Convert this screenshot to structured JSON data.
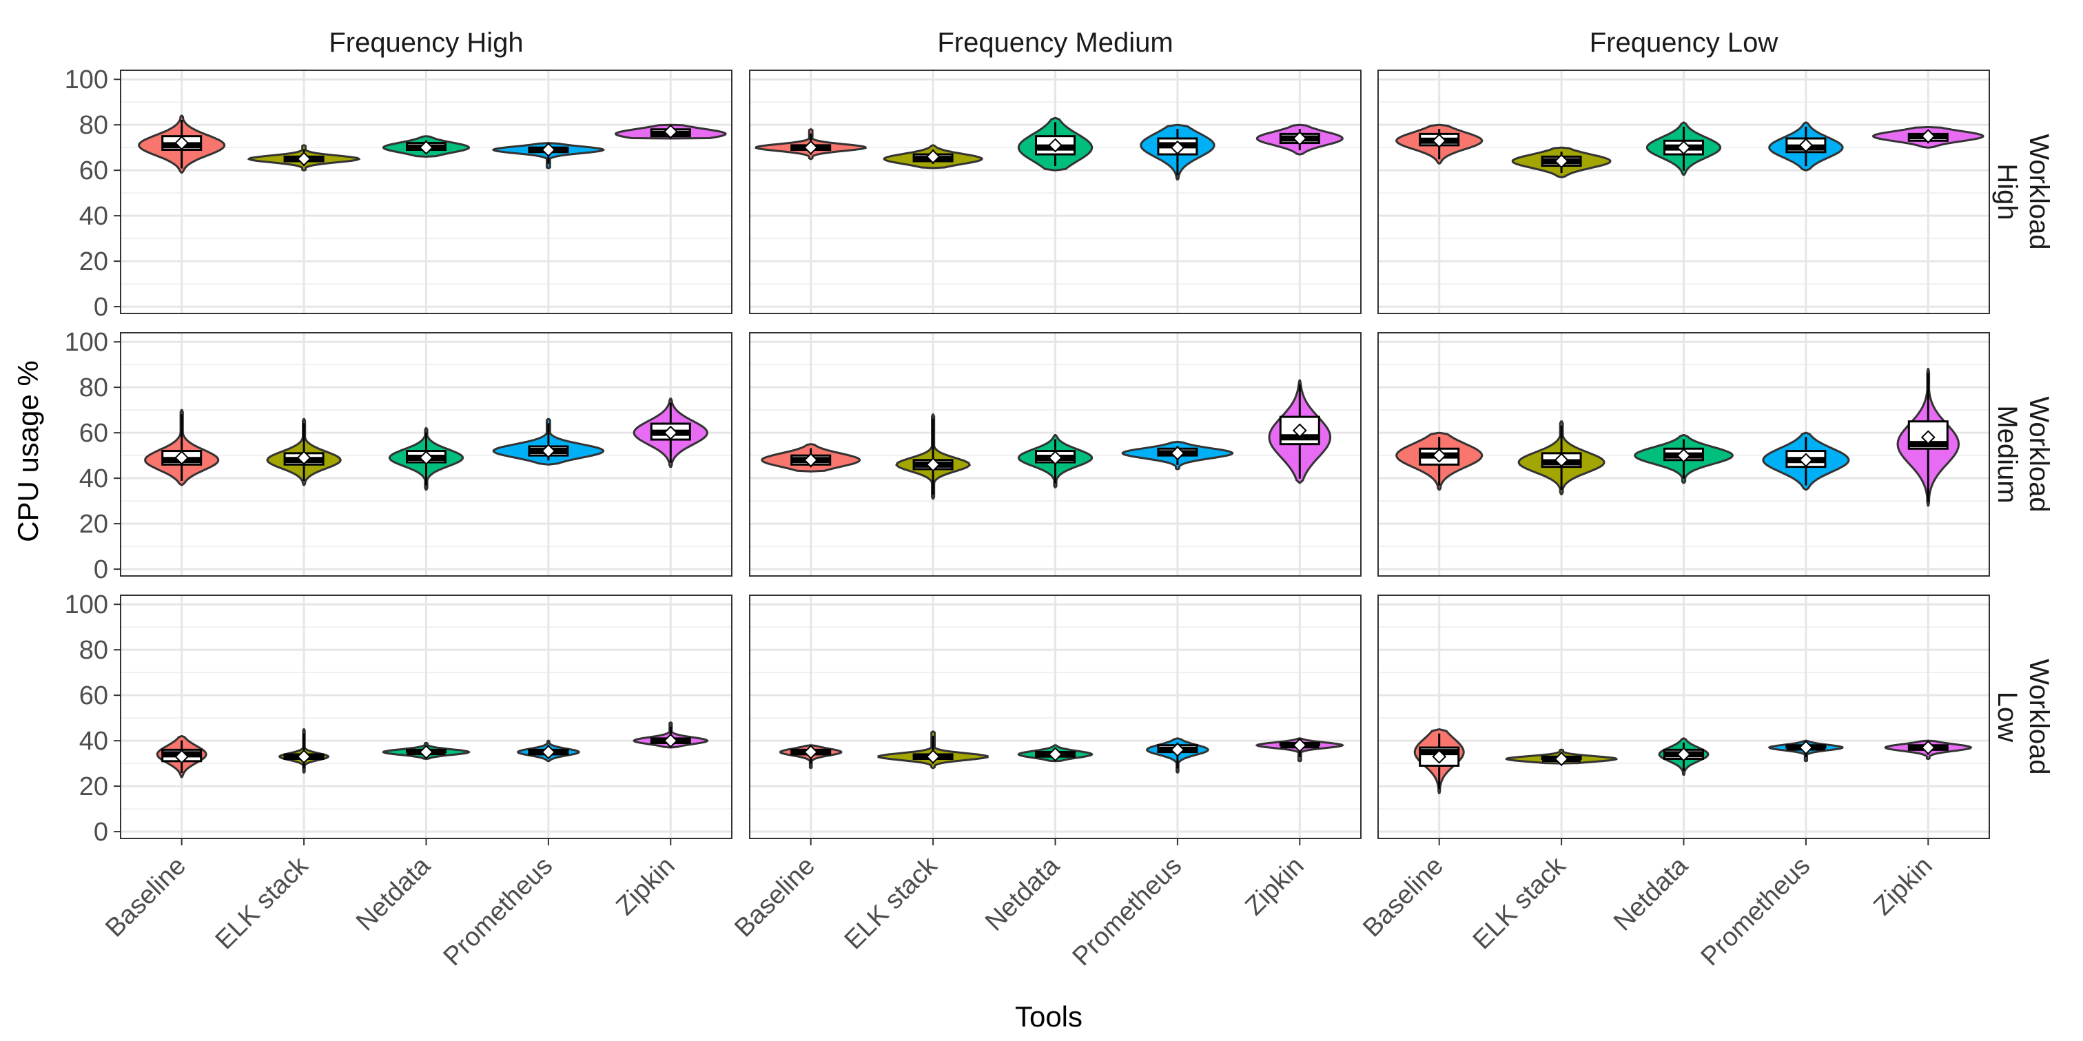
{
  "chart_data": {
    "type": "violin",
    "facet_columns": [
      "Frequency High",
      "Frequency Medium",
      "Frequency Low"
    ],
    "facet_rows": [
      "Workload High",
      "Workload Medium",
      "Workload Low"
    ],
    "facet_row_lines": [
      [
        "Workload",
        "High"
      ],
      [
        "Workload",
        "Medium"
      ],
      [
        "Workload",
        "Low"
      ]
    ],
    "categories": [
      "Baseline",
      "ELK stack",
      "Netdata",
      "Prometheus",
      "Zipkin"
    ],
    "colors": [
      "#F8766D",
      "#A3A500",
      "#00BF7D",
      "#00B0F6",
      "#E76BF3"
    ],
    "xlabel": "Tools",
    "ylabel": "CPU usage %",
    "ylim": [
      -3,
      104
    ],
    "yticks": [
      0,
      20,
      40,
      60,
      80,
      100
    ],
    "grid": true,
    "panels": [
      [
        [
          {
            "q1": 69,
            "median": 71,
            "q3": 75,
            "mean": 72,
            "min": 59,
            "max": 84,
            "w": 0.35
          },
          {
            "q1": 64,
            "median": 65,
            "q3": 66,
            "mean": 65,
            "min": 60,
            "max": 71,
            "w": 0.45
          },
          {
            "q1": 69,
            "median": 70,
            "q3": 72,
            "mean": 70,
            "min": 66,
            "max": 75,
            "w": 0.35
          },
          {
            "q1": 68,
            "median": 69,
            "q3": 70,
            "mean": 69,
            "min": 61,
            "max": 72,
            "w": 0.45
          },
          {
            "q1": 75,
            "median": 76,
            "q3": 78,
            "mean": 77,
            "min": 74,
            "max": 80,
            "w": 0.45
          }
        ],
        [
          {
            "q1": 69,
            "median": 70,
            "q3": 71,
            "mean": 70,
            "min": 65,
            "max": 78,
            "w": 0.45
          },
          {
            "q1": 64,
            "median": 65,
            "q3": 67,
            "mean": 66,
            "min": 61,
            "max": 71,
            "w": 0.4
          },
          {
            "q1": 67,
            "median": 70,
            "q3": 75,
            "mean": 71,
            "min": 60,
            "max": 83,
            "w": 0.3
          },
          {
            "q1": 67,
            "median": 71,
            "q3": 74,
            "mean": 70,
            "min": 56,
            "max": 80,
            "w": 0.3
          },
          {
            "q1": 72,
            "median": 74,
            "q3": 76,
            "mean": 74,
            "min": 67,
            "max": 80,
            "w": 0.35
          }
        ],
        [
          {
            "q1": 71,
            "median": 73,
            "q3": 76,
            "mean": 73,
            "min": 63,
            "max": 80,
            "w": 0.35
          },
          {
            "q1": 62,
            "median": 64,
            "q3": 66,
            "mean": 64,
            "min": 57,
            "max": 70,
            "w": 0.4
          },
          {
            "q1": 67,
            "median": 70,
            "q3": 73,
            "mean": 70,
            "min": 58,
            "max": 81,
            "w": 0.3
          },
          {
            "q1": 68,
            "median": 70,
            "q3": 74,
            "mean": 71,
            "min": 60,
            "max": 81,
            "w": 0.3
          },
          {
            "q1": 73,
            "median": 75,
            "q3": 76,
            "mean": 75,
            "min": 70,
            "max": 79,
            "w": 0.45
          }
        ]
      ],
      [
        [
          {
            "q1": 46,
            "median": 48,
            "q3": 52,
            "mean": 49,
            "min": 37,
            "max": 70,
            "w": 0.3
          },
          {
            "q1": 46,
            "median": 48,
            "q3": 51,
            "mean": 49,
            "min": 37,
            "max": 66,
            "w": 0.3
          },
          {
            "q1": 47,
            "median": 49,
            "q3": 52,
            "mean": 49,
            "min": 35,
            "max": 62,
            "w": 0.3
          },
          {
            "q1": 50,
            "median": 52,
            "q3": 54,
            "mean": 52,
            "min": 46,
            "max": 66,
            "w": 0.45
          },
          {
            "q1": 57,
            "median": 60,
            "q3": 64,
            "mean": 60,
            "min": 45,
            "max": 75,
            "w": 0.3
          }
        ],
        [
          {
            "q1": 46,
            "median": 48,
            "q3": 50,
            "mean": 48,
            "min": 43,
            "max": 55,
            "w": 0.4
          },
          {
            "q1": 44,
            "median": 46,
            "q3": 48,
            "mean": 46,
            "min": 31,
            "max": 68,
            "w": 0.3
          },
          {
            "q1": 47,
            "median": 49,
            "q3": 52,
            "mean": 49,
            "min": 36,
            "max": 59,
            "w": 0.3
          },
          {
            "q1": 50,
            "median": 51,
            "q3": 53,
            "mean": 51,
            "min": 44,
            "max": 56,
            "w": 0.45
          },
          {
            "q1": 55,
            "median": 58,
            "q3": 67,
            "mean": 61,
            "min": 38,
            "max": 83,
            "w": 0.25
          }
        ],
        [
          {
            "q1": 46,
            "median": 50,
            "q3": 53,
            "mean": 50,
            "min": 35,
            "max": 60,
            "w": 0.35
          },
          {
            "q1": 45,
            "median": 47,
            "q3": 51,
            "mean": 48,
            "min": 33,
            "max": 65,
            "w": 0.35
          },
          {
            "q1": 48,
            "median": 50,
            "q3": 53,
            "mean": 50,
            "min": 38,
            "max": 59,
            "w": 0.4
          },
          {
            "q1": 45,
            "median": 48,
            "q3": 52,
            "mean": 48,
            "min": 35,
            "max": 60,
            "w": 0.35
          },
          {
            "q1": 53,
            "median": 55,
            "q3": 65,
            "mean": 58,
            "min": 28,
            "max": 88,
            "w": 0.25
          }
        ]
      ],
      [
        [
          {
            "q1": 31,
            "median": 34,
            "q3": 36,
            "mean": 33,
            "min": 24,
            "max": 42,
            "w": 0.2
          },
          {
            "q1": 32,
            "median": 33,
            "q3": 34,
            "mean": 33,
            "min": 26,
            "max": 45,
            "w": 0.2
          },
          {
            "q1": 35,
            "median": 35,
            "q3": 36,
            "mean": 35,
            "min": 32,
            "max": 39,
            "w": 0.35
          },
          {
            "q1": 34,
            "median": 35,
            "q3": 36,
            "mean": 35,
            "min": 31,
            "max": 40,
            "w": 0.25
          },
          {
            "q1": 39,
            "median": 40,
            "q3": 41,
            "mean": 40,
            "min": 37,
            "max": 48,
            "w": 0.3
          }
        ],
        [
          {
            "q1": 34,
            "median": 35,
            "q3": 36,
            "mean": 35,
            "min": 28,
            "max": 38,
            "w": 0.25
          },
          {
            "q1": 32,
            "median": 33,
            "q3": 34,
            "mean": 33,
            "min": 28,
            "max": 44,
            "w": 0.45
          },
          {
            "q1": 33,
            "median": 34,
            "q3": 35,
            "mean": 34,
            "min": 31,
            "max": 38,
            "w": 0.3
          },
          {
            "q1": 35,
            "median": 36,
            "q3": 38,
            "mean": 36,
            "min": 26,
            "max": 41,
            "w": 0.25
          },
          {
            "q1": 38,
            "median": 38,
            "q3": 39,
            "mean": 38,
            "min": 31,
            "max": 41,
            "w": 0.35
          }
        ],
        [
          {
            "q1": 29,
            "median": 35,
            "q3": 37,
            "mean": 33,
            "min": 17,
            "max": 45,
            "w": 0.2
          },
          {
            "q1": 32,
            "median": 32,
            "q3": 33,
            "mean": 32,
            "min": 30,
            "max": 36,
            "w": 0.45
          },
          {
            "q1": 32,
            "median": 34,
            "q3": 36,
            "mean": 34,
            "min": 25,
            "max": 41,
            "w": 0.2
          },
          {
            "q1": 37,
            "median": 37,
            "q3": 38,
            "mean": 37,
            "min": 31,
            "max": 40,
            "w": 0.3
          },
          {
            "q1": 36,
            "median": 37,
            "q3": 38,
            "mean": 37,
            "min": 32,
            "max": 40,
            "w": 0.35
          }
        ]
      ]
    ]
  }
}
